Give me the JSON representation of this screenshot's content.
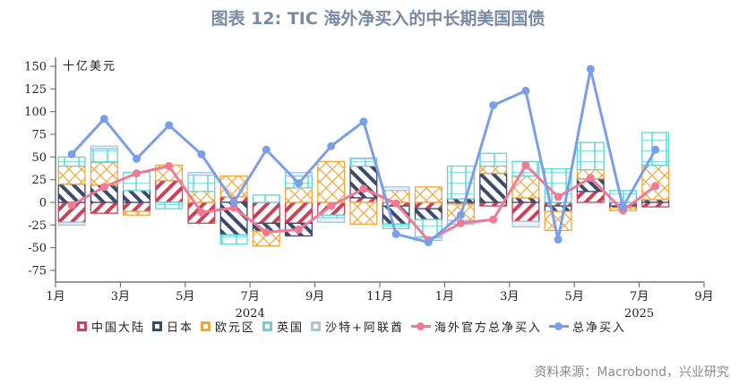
{
  "title": "图表 12: TIC 海外净买入的中长期美国国债",
  "source": "资料来源：Macrobond，兴业研究",
  "unit_label": "十亿美元",
  "colors": {
    "china": "#c94258",
    "japan": "#3c4a6b",
    "euro": "#f0a73a",
    "uk": "#5dd6d6",
    "saudi_uae": "#a8c4de",
    "official": "#f07a95",
    "total": "#7b9ee8"
  },
  "legend": [
    {
      "key": "china",
      "label": "中国大陆",
      "type": "bar"
    },
    {
      "key": "japan",
      "label": "日本",
      "type": "bar"
    },
    {
      "key": "euro",
      "label": "欧元区",
      "type": "bar"
    },
    {
      "key": "uk",
      "label": "英国",
      "type": "bar"
    },
    {
      "key": "saudi_uae",
      "label": "沙特+阿联酋",
      "type": "bar"
    },
    {
      "key": "official",
      "label": "海外官方总净买入",
      "type": "line"
    },
    {
      "key": "total",
      "label": "总净买入",
      "type": "line"
    }
  ],
  "x_ticks": [
    "1月",
    "3月",
    "5月",
    "7月",
    "9月",
    "11月",
    "1月",
    "3月",
    "5月",
    "7月",
    "9月"
  ],
  "year_labels": [
    "2024",
    "2025"
  ],
  "y_ticks": [
    150,
    125,
    100,
    75,
    50,
    25,
    0,
    -25,
    -50,
    -75
  ],
  "chart_data": {
    "type": "bar",
    "stacked": true,
    "title": "图表 12: TIC 海外净买入的中长期美国国债",
    "ylabel": "十亿美元",
    "xlabel": "",
    "ylim": [
      -85,
      160
    ],
    "categories": [
      "2024-01",
      "2024-02",
      "2024-03",
      "2024-04",
      "2024-05",
      "2024-06",
      "2024-07",
      "2024-08",
      "2024-09",
      "2024-10",
      "2024-11",
      "2024-12",
      "2025-01",
      "2025-02",
      "2025-03",
      "2025-04",
      "2025-05",
      "2025-06",
      "2025-07"
    ],
    "series": [
      {
        "name": "中国大陆",
        "type": "bar",
        "values": [
          -22,
          -12,
          -10,
          24,
          -23,
          6,
          -23,
          -23,
          -14,
          5,
          -4,
          -7,
          -2,
          -4,
          -21,
          -4,
          12,
          -4,
          -5
        ]
      },
      {
        "name": "日本",
        "type": "bar",
        "values": [
          20,
          19,
          13,
          0,
          0,
          -36,
          -9,
          -14,
          0,
          35,
          -20,
          -12,
          4,
          32,
          5,
          -6,
          14,
          -2,
          3
        ]
      },
      {
        "name": "欧元区",
        "type": "bar",
        "values": [
          20,
          25,
          -4,
          17,
          12,
          23,
          -16,
          16,
          45,
          -24,
          13,
          17,
          -18,
          8,
          24,
          -21,
          10,
          -3,
          38
        ]
      },
      {
        "name": "英国",
        "type": "bar",
        "values": [
          10,
          15,
          20,
          -7,
          18,
          -10,
          8,
          13,
          -3,
          8,
          -5,
          -20,
          36,
          14,
          16,
          37,
          30,
          13,
          36
        ]
      },
      {
        "name": "沙特+阿联酋",
        "type": "bar",
        "values": [
          -3,
          3,
          0,
          0,
          3,
          0,
          0,
          4,
          -5,
          1,
          4,
          -3,
          -4,
          0,
          -6,
          0,
          0,
          0,
          0
        ]
      },
      {
        "name": "海外官方总净买入",
        "type": "line",
        "values": [
          -3,
          17,
          32,
          40,
          -11,
          -6,
          -33,
          -30,
          -4,
          15,
          -1,
          -42,
          -23,
          -19,
          41,
          6,
          27,
          -9,
          18
        ]
      },
      {
        "name": "总净买入",
        "type": "line",
        "values": [
          53,
          92,
          48,
          85,
          53,
          0,
          58,
          21,
          62,
          89,
          -35,
          -44,
          -14,
          107,
          123,
          -41,
          147,
          -5,
          58
        ]
      }
    ],
    "grid": false,
    "legend_position": "bottom"
  }
}
